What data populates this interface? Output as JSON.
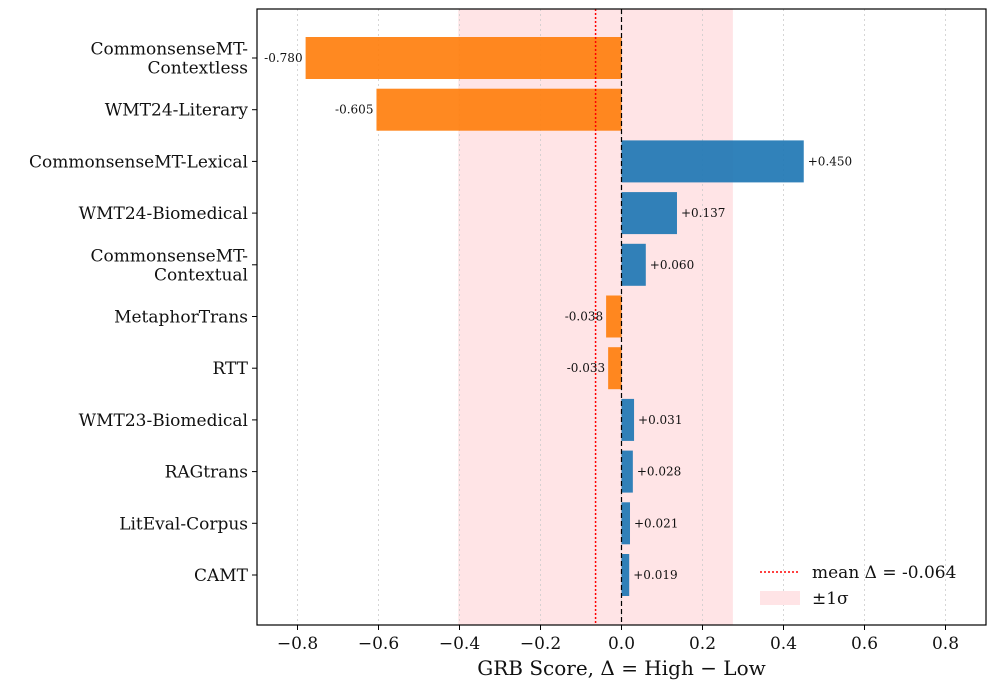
{
  "chart_data": {
    "type": "bar",
    "orientation": "horizontal",
    "title": "",
    "xlabel": "GRB Score, Δ = High − Low",
    "ylabel": "",
    "xlim": [
      -0.9,
      0.9
    ],
    "xticks": [
      -0.8,
      -0.6,
      -0.4,
      -0.2,
      0.0,
      0.2,
      0.4,
      0.6,
      0.8
    ],
    "xtick_labels": [
      "−0.8",
      "−0.6",
      "−0.4",
      "−0.2",
      "0.0",
      "0.2",
      "0.4",
      "0.6",
      "0.8"
    ],
    "grid": "x-dashed",
    "categories": [
      [
        "CommonsenseMT-",
        "Contextless"
      ],
      [
        "WMT24-Literary"
      ],
      [
        "CommonsenseMT-Lexical"
      ],
      [
        "WMT24-Biomedical"
      ],
      [
        "CommonsenseMT-",
        "Contextual"
      ],
      [
        "MetaphorTrans"
      ],
      [
        "RTT"
      ],
      [
        "WMT23-Biomedical"
      ],
      [
        "RAGtrans"
      ],
      [
        "LitEval-Corpus"
      ],
      [
        "CAMT"
      ]
    ],
    "values": [
      -0.78,
      -0.605,
      0.45,
      0.137,
      0.06,
      -0.038,
      -0.033,
      0.031,
      0.028,
      0.021,
      0.019
    ],
    "value_labels": [
      "-0.780",
      "-0.605",
      "+0.450",
      "+0.137",
      "+0.060",
      "-0.038",
      "-0.033",
      "+0.031",
      "+0.028",
      "+0.021",
      "+0.019"
    ],
    "colors": {
      "negative": "#ff7f0e",
      "positive": "#1f77b4",
      "mean_line": "#ff0000",
      "band": "#ffe4e6",
      "zero_line": "#000000"
    },
    "mean": -0.064,
    "sigma_band": [
      -0.403,
      0.275
    ],
    "legend": {
      "position": "lower-right",
      "entries": [
        {
          "label": "mean Δ = -0.064",
          "style": "red-dotted-line"
        },
        {
          "label": "±1σ",
          "style": "pink-patch"
        }
      ]
    }
  }
}
